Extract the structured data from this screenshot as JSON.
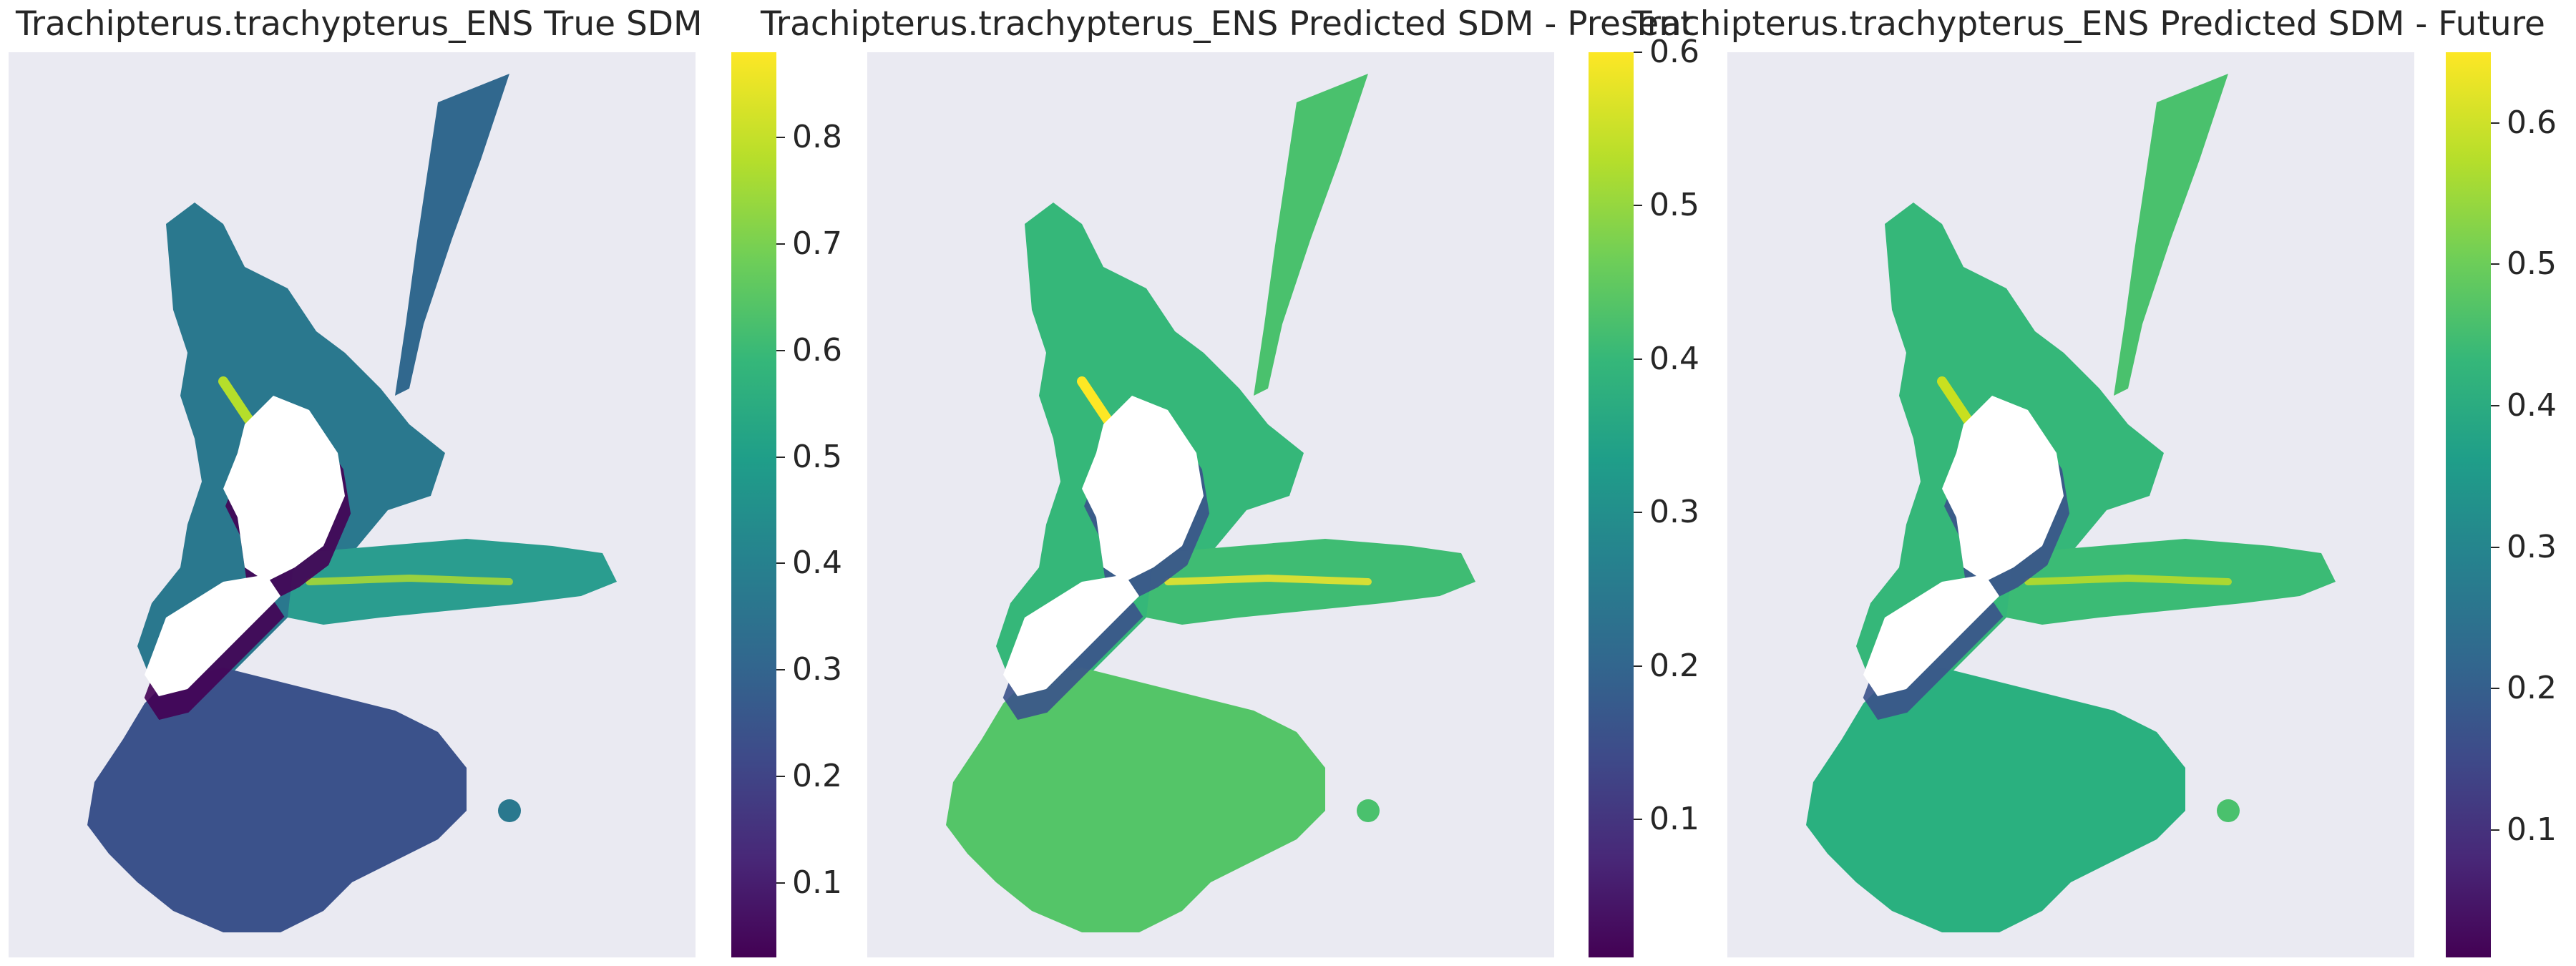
{
  "chart_data": [
    {
      "type": "heatmap",
      "title": "Trachipterus.trachypterus_ENS True SDM",
      "xlabel": "",
      "ylabel": "",
      "colormap": "viridis",
      "colorbar": {
        "range": [
          0.03,
          0.88
        ],
        "ticks": [
          0.1,
          0.2,
          0.3,
          0.4,
          0.5,
          0.6,
          0.7,
          0.8
        ],
        "tick_labels": [
          "0.1",
          "0.2",
          "0.3",
          "0.4",
          "0.5",
          "0.6",
          "0.7",
          "0.8"
        ]
      },
      "background_color": "#eaeaf2",
      "grid": false
    },
    {
      "type": "heatmap",
      "title": "Trachipterus.trachypterus_ENS Predicted SDM - Present",
      "xlabel": "",
      "ylabel": "",
      "colormap": "viridis",
      "colorbar": {
        "range": [
          0.01,
          0.6
        ],
        "ticks": [
          0.1,
          0.2,
          0.3,
          0.4,
          0.5,
          0.6
        ],
        "tick_labels": [
          "0.1",
          "0.2",
          "0.3",
          "0.4",
          "0.5",
          "0.6"
        ]
      },
      "background_color": "#eaeaf2",
      "grid": false
    },
    {
      "type": "heatmap",
      "title": "Trachipterus.trachypterus_ENS Predicted SDM - Future",
      "xlabel": "",
      "ylabel": "",
      "colormap": "viridis",
      "colorbar": {
        "range": [
          0.01,
          0.65
        ],
        "ticks": [
          0.1,
          0.2,
          0.3,
          0.4,
          0.5,
          0.6
        ],
        "tick_labels": [
          "0.1",
          "0.2",
          "0.3",
          "0.4",
          "0.5",
          "0.6"
        ]
      },
      "background_color": "#eaeaf2",
      "grid": false
    }
  ],
  "colors": {
    "viridis_low": "#440154",
    "viridis_mid": "#21918c",
    "viridis_high": "#fde725",
    "land": "#ffffff"
  }
}
